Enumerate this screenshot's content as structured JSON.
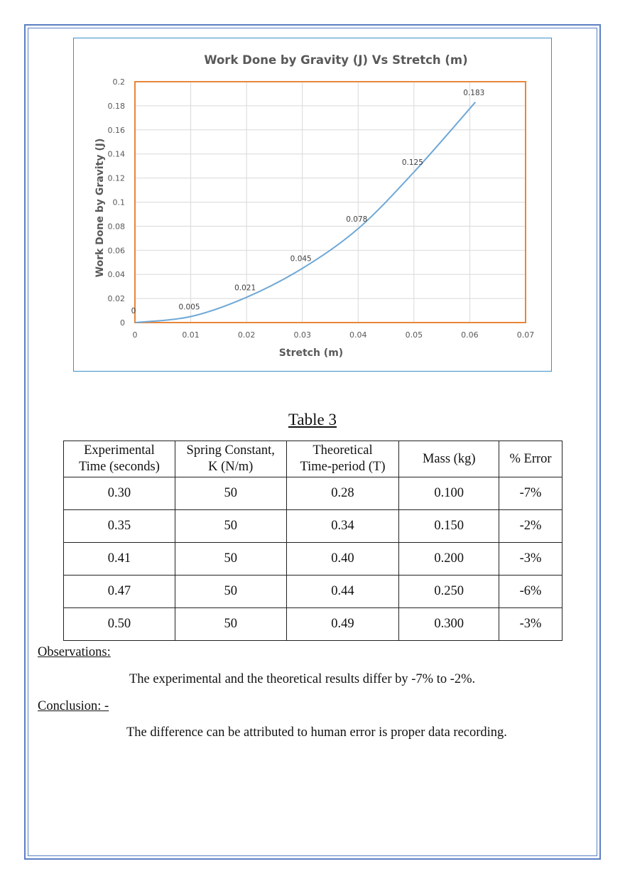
{
  "chart_data": {
    "type": "line",
    "title": "Work Done by Gravity (J) Vs Stretch (m)",
    "xlabel": "Stretch (m)",
    "ylabel": "Work Done by Gravity (J)",
    "xlim": [
      0,
      0.07
    ],
    "ylim": [
      0,
      0.2
    ],
    "x_ticks": [
      "0",
      "0.01",
      "0.02",
      "0.03",
      "0.04",
      "0.05",
      "0.06",
      "0.07"
    ],
    "y_ticks": [
      "0",
      "0.02",
      "0.04",
      "0.06",
      "0.08",
      "0.1",
      "0.12",
      "0.14",
      "0.16",
      "0.18",
      "0.2"
    ],
    "grid": true,
    "legend": "none",
    "series": [
      {
        "color": "#6fa8d6",
        "x": [
          0,
          0.01,
          0.02,
          0.03,
          0.04,
          0.05,
          0.061
        ],
        "values": [
          0,
          0.005,
          0.021,
          0.045,
          0.078,
          0.125,
          0.183
        ],
        "labels": [
          "0",
          "0.005",
          "0.021",
          "0.045",
          "0.078",
          "0.125",
          "0.183"
        ]
      }
    ],
    "plot_border_color": "#e8863a"
  },
  "table": {
    "title": "Table 3",
    "headers": [
      [
        "Experimental",
        "Time (seconds)"
      ],
      [
        "Spring Constant,",
        "K (N/m)"
      ],
      [
        "Theoretical",
        "Time-period (T)"
      ],
      [
        "Mass (kg)"
      ],
      [
        "% Error"
      ]
    ],
    "rows": [
      [
        "0.30",
        "50",
        "0.28",
        "0.100",
        "-7%"
      ],
      [
        "0.35",
        "50",
        "0.34",
        "0.150",
        "-2%"
      ],
      [
        "0.41",
        "50",
        "0.40",
        "0.200",
        "-3%"
      ],
      [
        "0.47",
        "50",
        "0.44",
        "0.250",
        "-6%"
      ],
      [
        "0.50",
        "50",
        "0.49",
        "0.300",
        "-3%"
      ]
    ]
  },
  "observations": {
    "heading": "Observations: ",
    "text": "The experimental and the theoretical results differ by -7% to -2%."
  },
  "conclusion": {
    "heading": "Conclusion: - ",
    "text": "The difference can be attributed to human error is proper data recording."
  }
}
